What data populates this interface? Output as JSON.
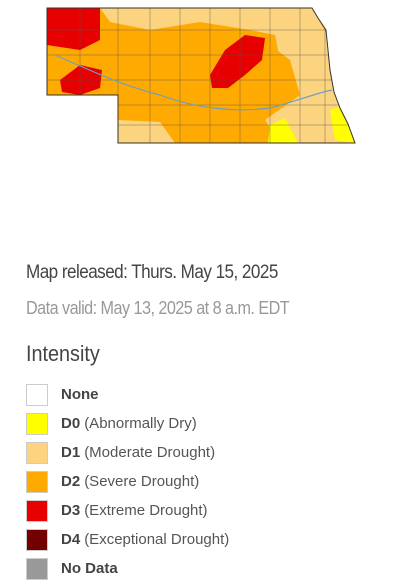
{
  "released": "Map released: Thurs. May 15, 2025",
  "valid": "Data valid: May 13, 2025 at 8 a.m. EDT",
  "legend": {
    "title": "Intensity",
    "items": [
      {
        "code": "None",
        "color": "#ffffff"
      },
      {
        "code": "D0",
        "description": "(Abnormally Dry)",
        "color": "#ffff00"
      },
      {
        "code": "D1",
        "description": "(Moderate Drought)",
        "color": "#fcd37f"
      },
      {
        "code": "D2",
        "description": "(Severe Drought)",
        "color": "#ffaa00"
      },
      {
        "code": "D3",
        "description": "(Extreme Drought)",
        "color": "#e60000"
      },
      {
        "code": "D4",
        "description": "(Exceptional Drought)",
        "color": "#730000"
      },
      {
        "code": "No Data",
        "color": "#999999"
      }
    ]
  }
}
